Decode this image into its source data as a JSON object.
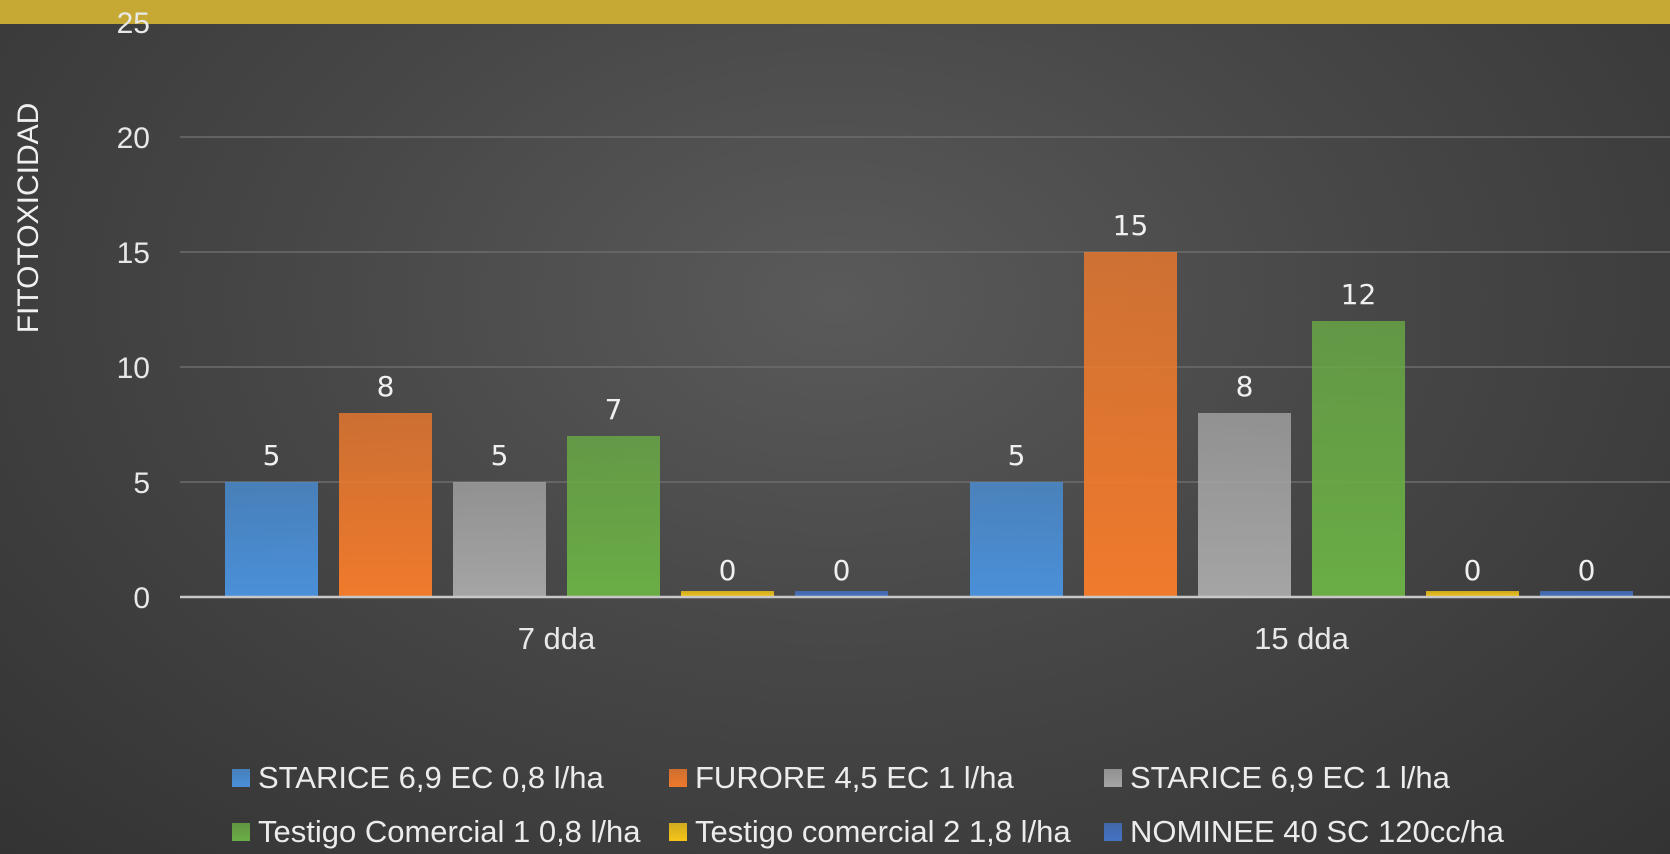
{
  "chart_data": {
    "type": "bar",
    "categories": [
      "7 dda",
      "15 dda"
    ],
    "series": [
      {
        "name": "STARICE 6,9 EC 0,8 l/ha",
        "values": [
          5,
          5
        ],
        "color": "#4a90d9"
      },
      {
        "name": "FURORE 4,5 EC 1 l/ha",
        "values": [
          8,
          15
        ],
        "color": "#f07a2c"
      },
      {
        "name": "STARICE 6,9 EC 1 l/ha",
        "values": [
          5,
          8
        ],
        "color": "#a5a5a5"
      },
      {
        "name": "Testigo Comercial 1 0,8 l/ha",
        "values": [
          7,
          12
        ],
        "color": "#6aad45"
      },
      {
        "name": "Testigo comercial 2 1,8 l/ha",
        "values": [
          0,
          0
        ],
        "color": "#f5c518"
      },
      {
        "name": "NOMINEE 40 SC 120cc/ha",
        "values": [
          0,
          0
        ],
        "color": "#4472c4"
      }
    ],
    "ylabel": "FITOTOXICIDAD",
    "ylim": [
      0,
      25
    ],
    "yticks": [
      0,
      5,
      10,
      15,
      20,
      25
    ],
    "grid": true,
    "legend_position": "bottom",
    "data_labels": true
  }
}
